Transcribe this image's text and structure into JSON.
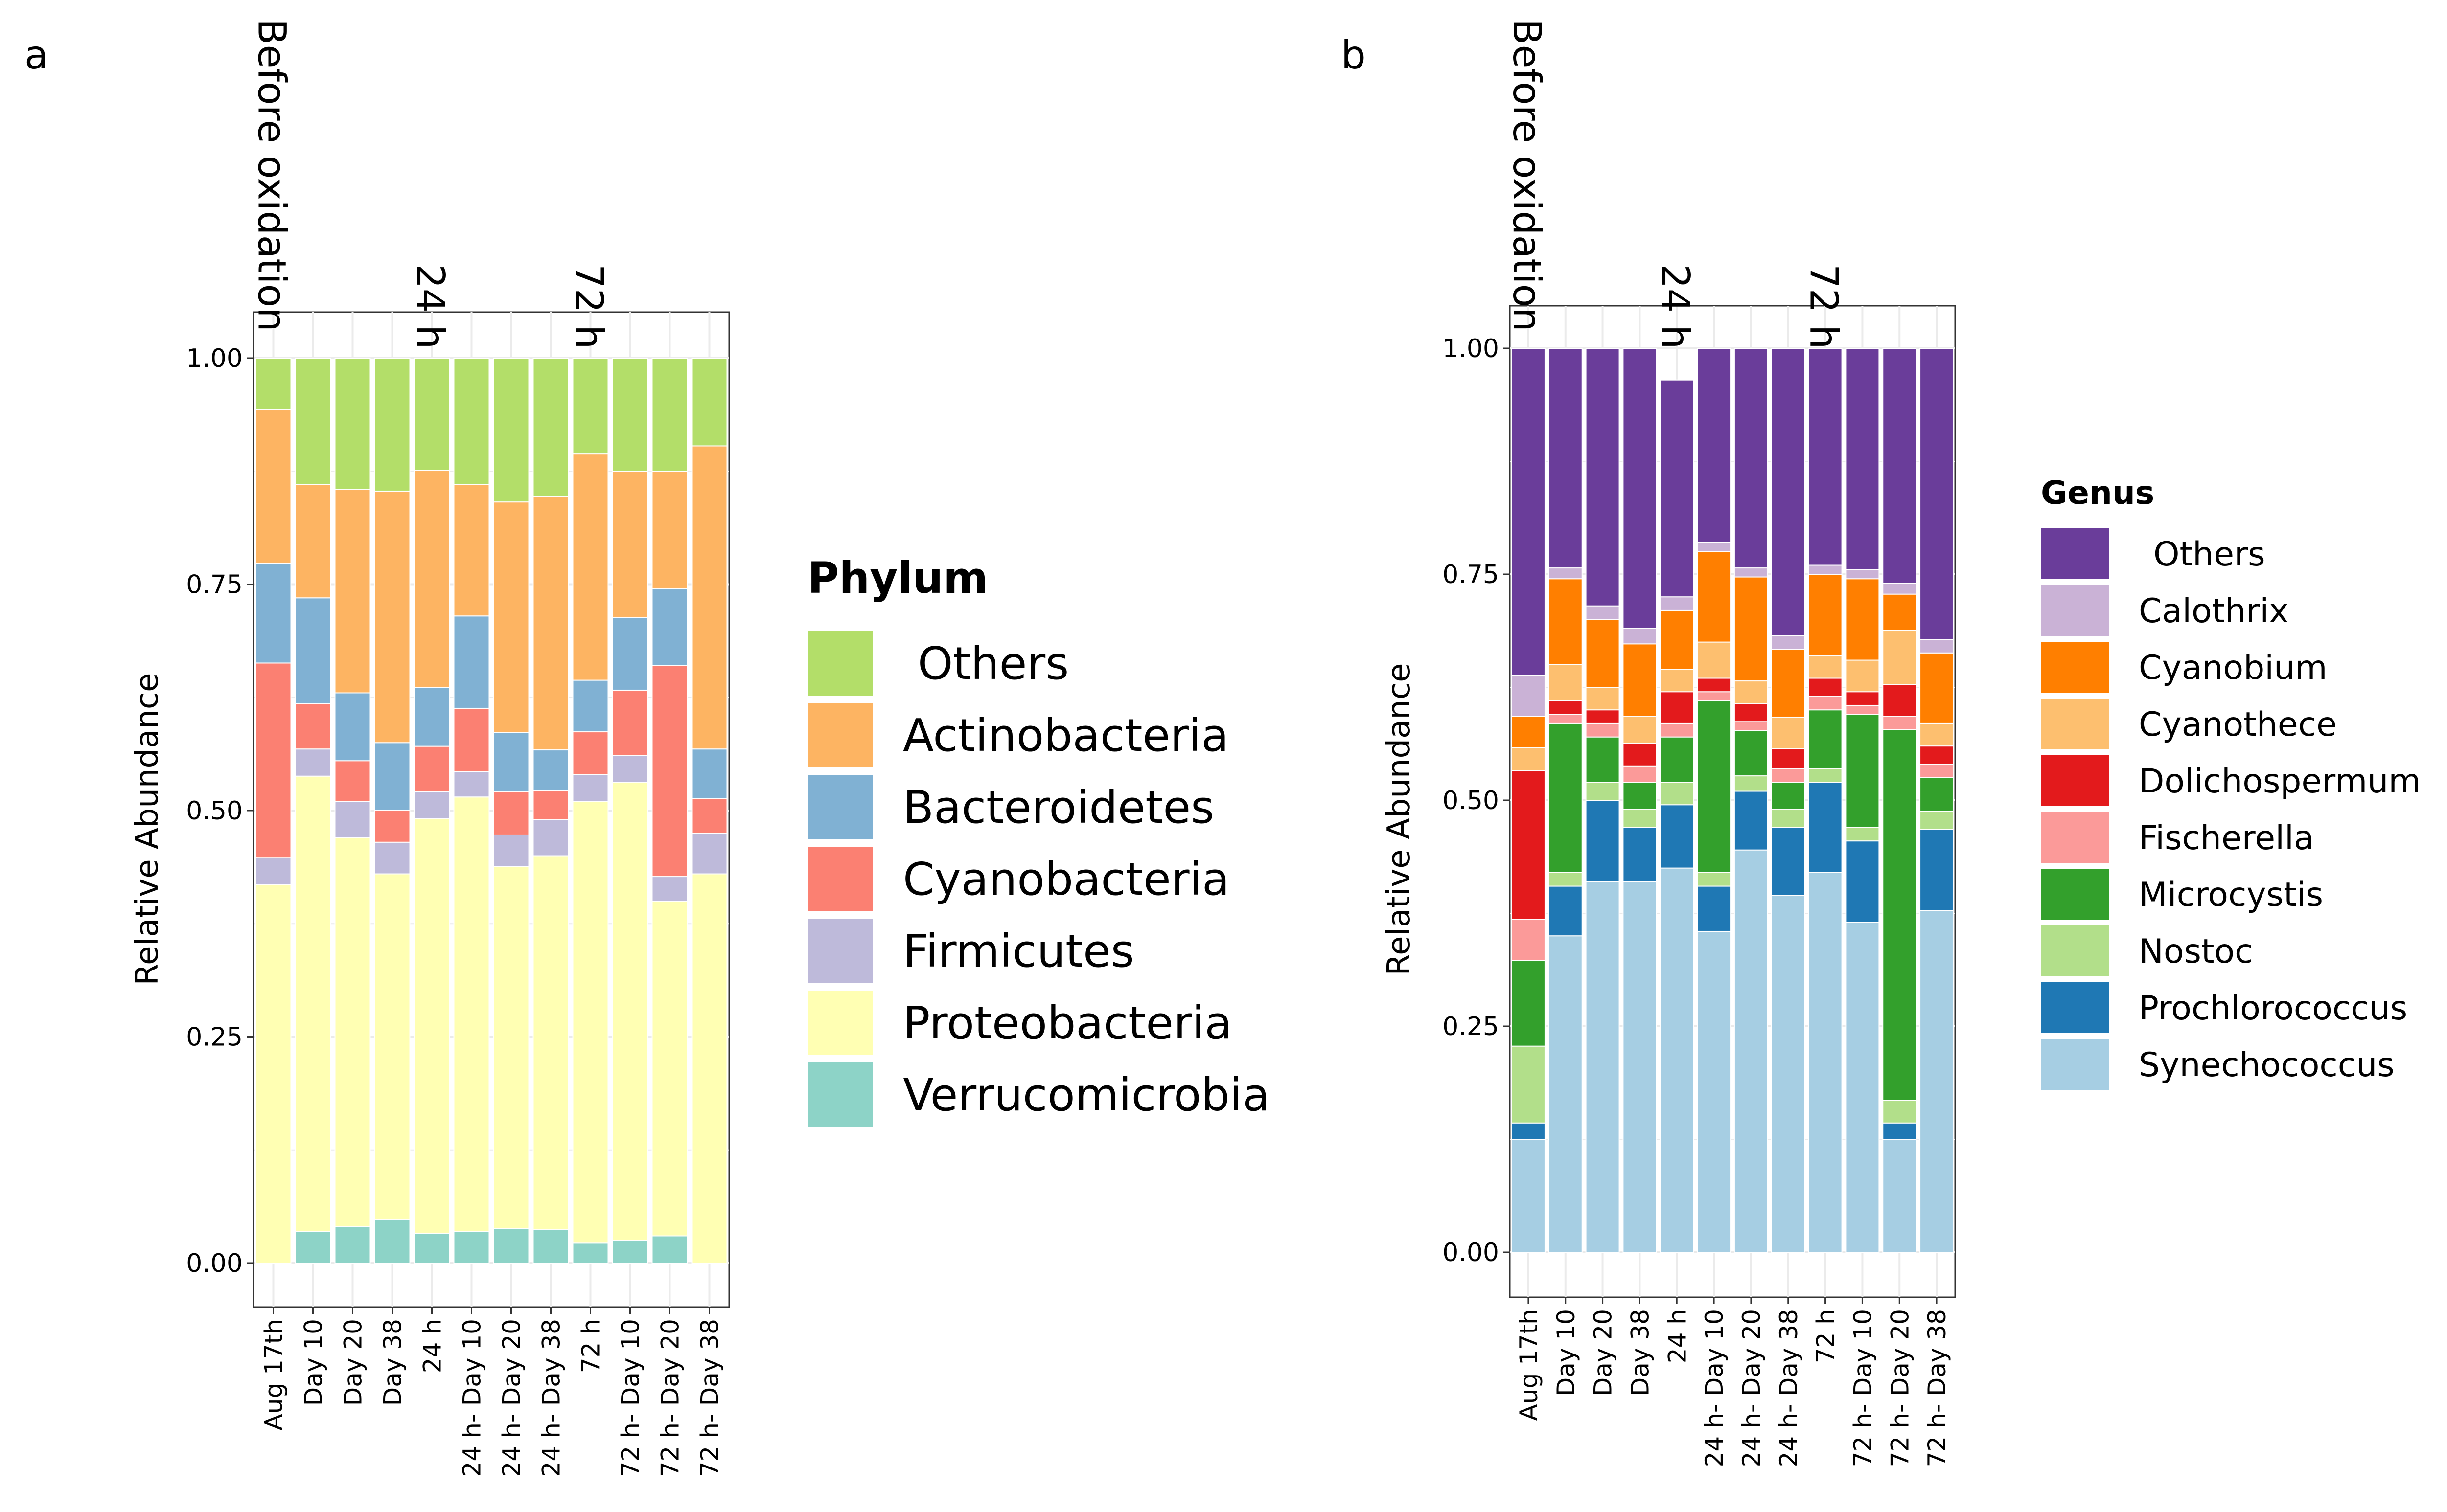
{
  "chart_data": [
    {
      "panel_label": "a",
      "type": "bar",
      "stacked": true,
      "ylabel": "Relative Abundance",
      "ylim": [
        0,
        1
      ],
      "yticks": [
        "0.00",
        "0.25",
        "0.50",
        "0.75",
        "1.00"
      ],
      "categories": [
        "Aug 17th",
        "Day 10",
        "Day 20",
        "Day 38",
        "24 h",
        "24 h- Day 10",
        "24 h- Day 20",
        "24 h- Day 38",
        "72 h",
        "72 h- Day 10",
        "72 h- Day 20",
        "72 h- Day 38"
      ],
      "annotations": [
        {
          "text": "Before oxidation",
          "category_index": 0
        },
        {
          "text": "24 h",
          "category_index": 4
        },
        {
          "text": "72 h",
          "category_index": 8
        }
      ],
      "legend_title": "Phylum",
      "legend": [
        "Others",
        "Actinobacteria",
        "Bacteroidetes",
        "Cyanobacteria",
        "Firmicutes",
        "Proteobacteria",
        "Verrucomicrobia"
      ],
      "stack_order_bottom_to_top": [
        "Verrucomicrobia",
        "Proteobacteria",
        "Firmicutes",
        "Cyanobacteria",
        "Bacteroidetes",
        "Actinobacteria",
        "Others"
      ],
      "series": [
        {
          "name": "Verrucomicrobia",
          "color": "#8dd3c7",
          "values": [
            0.0,
            0.035,
            0.04,
            0.048,
            0.033,
            0.035,
            0.038,
            0.037,
            0.022,
            0.025,
            0.03,
            0.0
          ]
        },
        {
          "name": "Proteobacteria",
          "color": "#ffffb3",
          "values": [
            0.418,
            0.503,
            0.43,
            0.382,
            0.458,
            0.48,
            0.4,
            0.413,
            0.488,
            0.506,
            0.37,
            0.43
          ]
        },
        {
          "name": "Firmicutes",
          "color": "#bebada",
          "values": [
            0.03,
            0.03,
            0.04,
            0.035,
            0.03,
            0.028,
            0.035,
            0.04,
            0.03,
            0.03,
            0.027,
            0.045
          ]
        },
        {
          "name": "Cyanobacteria",
          "color": "#fb8072",
          "values": [
            0.215,
            0.05,
            0.045,
            0.035,
            0.05,
            0.07,
            0.048,
            0.032,
            0.047,
            0.072,
            0.233,
            0.038
          ]
        },
        {
          "name": "Bacteroidetes",
          "color": "#80b1d3",
          "values": [
            0.11,
            0.117,
            0.075,
            0.075,
            0.065,
            0.102,
            0.065,
            0.045,
            0.057,
            0.08,
            0.085,
            0.055
          ]
        },
        {
          "name": "Actinobacteria",
          "color": "#fdb462",
          "values": [
            0.17,
            0.125,
            0.225,
            0.278,
            0.24,
            0.145,
            0.255,
            0.28,
            0.25,
            0.162,
            0.13,
            0.335
          ]
        },
        {
          "name": "Others",
          "color": "#b3de69",
          "values": [
            0.057,
            0.14,
            0.145,
            0.147,
            0.124,
            0.14,
            0.159,
            0.153,
            0.106,
            0.125,
            0.125,
            0.097
          ]
        }
      ]
    },
    {
      "panel_label": "b",
      "type": "bar",
      "stacked": true,
      "ylabel": "Relative Abundance",
      "ylim": [
        0,
        1
      ],
      "yticks": [
        "0.00",
        "0.25",
        "0.50",
        "0.75",
        "1.00"
      ],
      "categories": [
        "Aug 17th",
        "Day 10",
        "Day 20",
        "Day 38",
        "24 h",
        "24 h- Day 10",
        "24 h- Day 20",
        "24 h- Day 38",
        "72 h",
        "72 h- Day 10",
        "72 h- Day 20",
        "72 h- Day 38"
      ],
      "annotations": [
        {
          "text": "Before oxidation",
          "category_index": 0
        },
        {
          "text": "24 h",
          "category_index": 4
        },
        {
          "text": "72 h",
          "category_index": 8
        }
      ],
      "legend_title": "Genus",
      "legend": [
        "Others",
        "Calothrix",
        "Cyanobium",
        "Cyanothece",
        "Dolichospermum",
        "Fischerella",
        "Microcystis",
        "Nostoc",
        "Prochlorococcus",
        "Synechococcus"
      ],
      "stack_order_bottom_to_top": [
        "Synechococcus",
        "Prochlorococcus",
        "Nostoc",
        "Microcystis",
        "Fischerella",
        "Dolichospermum",
        "Cyanothece",
        "Cyanobium",
        "Calothrix",
        "Others"
      ],
      "series": [
        {
          "name": "Synechococcus",
          "color": "#a6cee3",
          "values": [
            0.125,
            0.35,
            0.41,
            0.41,
            0.425,
            0.355,
            0.445,
            0.395,
            0.42,
            0.365,
            0.125,
            0.378
          ]
        },
        {
          "name": "Prochlorococcus",
          "color": "#1f78b4",
          "values": [
            0.018,
            0.055,
            0.09,
            0.06,
            0.07,
            0.05,
            0.065,
            0.075,
            0.1,
            0.09,
            0.018,
            0.09
          ]
        },
        {
          "name": "Nostoc",
          "color": "#b2df8a",
          "values": [
            0.085,
            0.015,
            0.02,
            0.02,
            0.025,
            0.015,
            0.017,
            0.02,
            0.015,
            0.015,
            0.025,
            0.02
          ]
        },
        {
          "name": "Microcystis",
          "color": "#33a02c",
          "values": [
            0.095,
            0.165,
            0.05,
            0.03,
            0.05,
            0.19,
            0.05,
            0.03,
            0.065,
            0.125,
            0.41,
            0.037
          ]
        },
        {
          "name": "Fischerella",
          "color": "#fb9a99",
          "values": [
            0.045,
            0.01,
            0.015,
            0.018,
            0.015,
            0.01,
            0.01,
            0.015,
            0.015,
            0.01,
            0.015,
            0.015
          ]
        },
        {
          "name": "Dolichospermum",
          "color": "#e31a1c",
          "values": [
            0.165,
            0.015,
            0.015,
            0.025,
            0.035,
            0.015,
            0.02,
            0.022,
            0.02,
            0.015,
            0.035,
            0.02
          ]
        },
        {
          "name": "Cyanothece",
          "color": "#fdbf6f",
          "values": [
            0.025,
            0.04,
            0.025,
            0.03,
            0.025,
            0.04,
            0.025,
            0.035,
            0.025,
            0.035,
            0.06,
            0.025
          ]
        },
        {
          "name": "Cyanobium",
          "color": "#ff7f00",
          "values": [
            0.035,
            0.095,
            0.075,
            0.08,
            0.065,
            0.1,
            0.115,
            0.075,
            0.09,
            0.09,
            0.04,
            0.078
          ]
        },
        {
          "name": "Calothrix",
          "color": "#cab2d6",
          "values": [
            0.045,
            0.012,
            0.015,
            0.017,
            0.015,
            0.01,
            0.01,
            0.015,
            0.01,
            0.01,
            0.012,
            0.015
          ]
        },
        {
          "name": "Others",
          "color": "#6a3d9a",
          "values": [
            0.362,
            0.243,
            0.285,
            0.31,
            0.24,
            0.215,
            0.243,
            0.318,
            0.24,
            0.245,
            0.26,
            0.322
          ]
        }
      ]
    }
  ]
}
